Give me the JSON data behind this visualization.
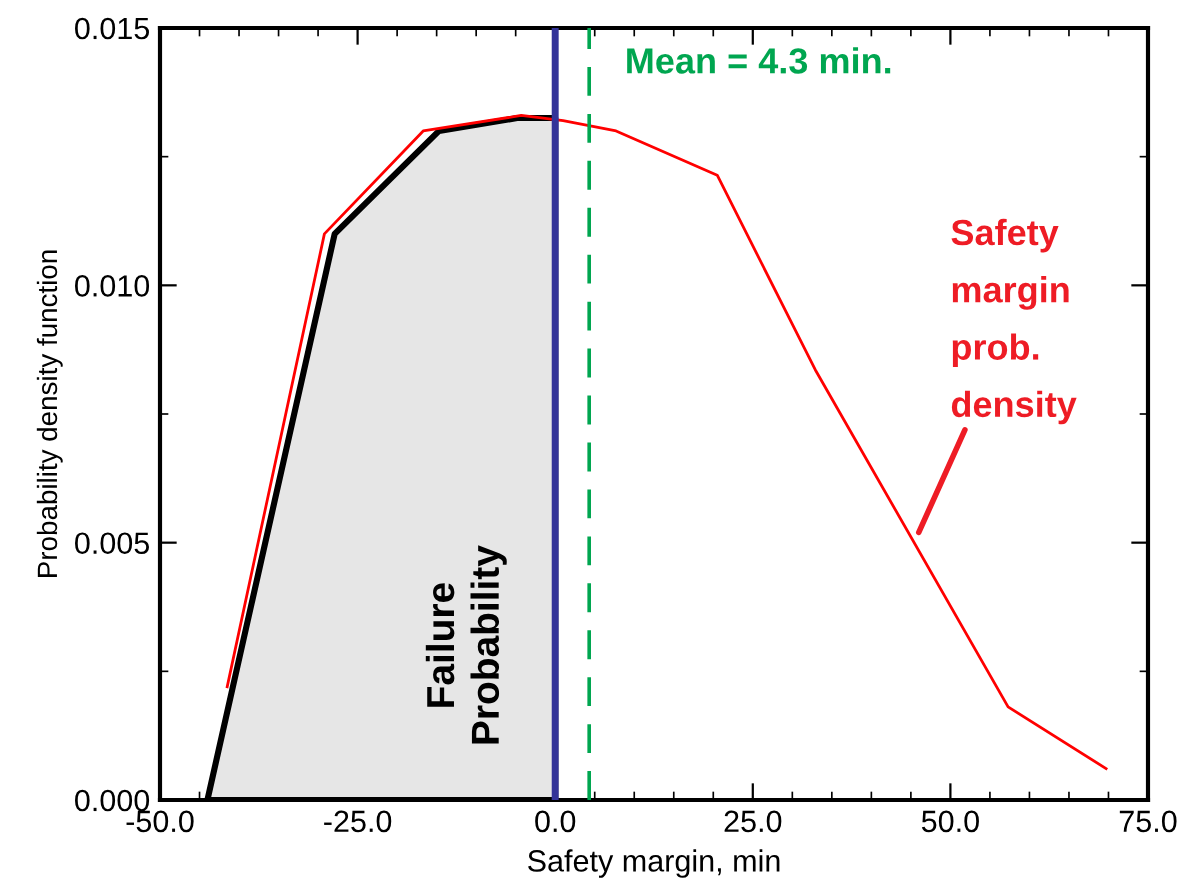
{
  "chart_data": {
    "type": "line",
    "xlabel": "Safety margin, min",
    "ylabel": "Probability density function",
    "series": [
      {
        "type": "area",
        "color": "#e6e6e6",
        "x": [
          -44,
          -27.9,
          -14.7,
          -4.8,
          0
        ],
        "values": [
          0,
          0.011,
          0.013,
          0.01325,
          0.01325
        ]
      },
      {
        "color": "#ff0000",
        "x": [
          -41.5,
          -29.2,
          -16.7,
          -4.3,
          1,
          7.7,
          20.5,
          32.9,
          57.3,
          69.7
        ],
        "values": [
          0.0022,
          0.011,
          0.013,
          0.0133,
          0.0132,
          0.013,
          0.01214,
          0.00836,
          0.00181,
          0.00061
        ]
      }
    ],
    "ref_lines": [
      {
        "axis": "x",
        "value": 0,
        "color": "#333399",
        "line_style": "solid"
      },
      {
        "axis": "x",
        "value": 4.3,
        "label": "Mean = 4.3 min.",
        "color": "#00a650",
        "line_style": "dashed"
      }
    ],
    "annotations": [
      "Failure\nProbability",
      {
        "text": "Safety\nmargin\nprob.\ndensity",
        "x": 46,
        "y": 0.0052
      }
    ],
    "xlim": [
      -50,
      75
    ],
    "ylim": [
      0,
      0.015
    ],
    "xticks": [
      {
        "value": -50,
        "label": "-50.0"
      },
      {
        "value": -25,
        "label": "-25.0"
      },
      {
        "value": 0,
        "label": "0.0"
      },
      {
        "value": 25,
        "label": "25.0"
      },
      {
        "value": 50,
        "label": "50.0"
      },
      {
        "value": 75,
        "label": "75.0"
      }
    ],
    "yticks": [
      {
        "value": 0,
        "label": "0.000"
      },
      {
        "value": 0.005,
        "label": "0.005"
      },
      {
        "value": 0.01,
        "label": "0.010"
      },
      {
        "value": 0.015,
        "label": "0.015"
      }
    ],
    "grid": false,
    "marker": "none",
    "line_style": "solid"
  }
}
